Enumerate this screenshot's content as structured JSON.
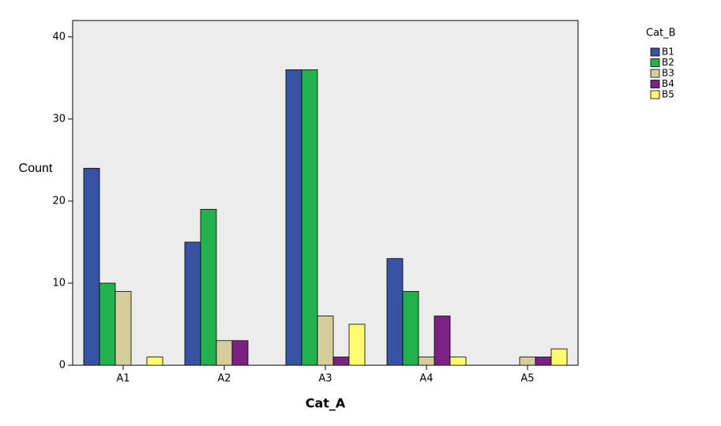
{
  "chart_data": {
    "type": "bar",
    "x_label": "Cat_A",
    "y_label": "Count",
    "legend_title": "Cat_B",
    "legend": "top-right",
    "categories": [
      "A1",
      "A2",
      "A3",
      "A4",
      "A5"
    ],
    "series": [
      {
        "name": "B1",
        "color": "#3953a4",
        "values": [
          24,
          15,
          36,
          13,
          0
        ]
      },
      {
        "name": "B2",
        "color": "#22b14c",
        "values": [
          10,
          19,
          36,
          9,
          0
        ]
      },
      {
        "name": "B3",
        "color": "#d3ce9c",
        "values": [
          9,
          3,
          6,
          1,
          1
        ]
      },
      {
        "name": "B4",
        "color": "#7b2283",
        "values": [
          0,
          3,
          1,
          6,
          1
        ]
      },
      {
        "name": "B5",
        "color": "#fcfc6c",
        "values": [
          1,
          0,
          5,
          1,
          2
        ]
      }
    ],
    "ylim": [
      0,
      42
    ],
    "yticks": [
      0,
      10,
      20,
      30,
      40
    ],
    "plot_background": "#ececec"
  }
}
